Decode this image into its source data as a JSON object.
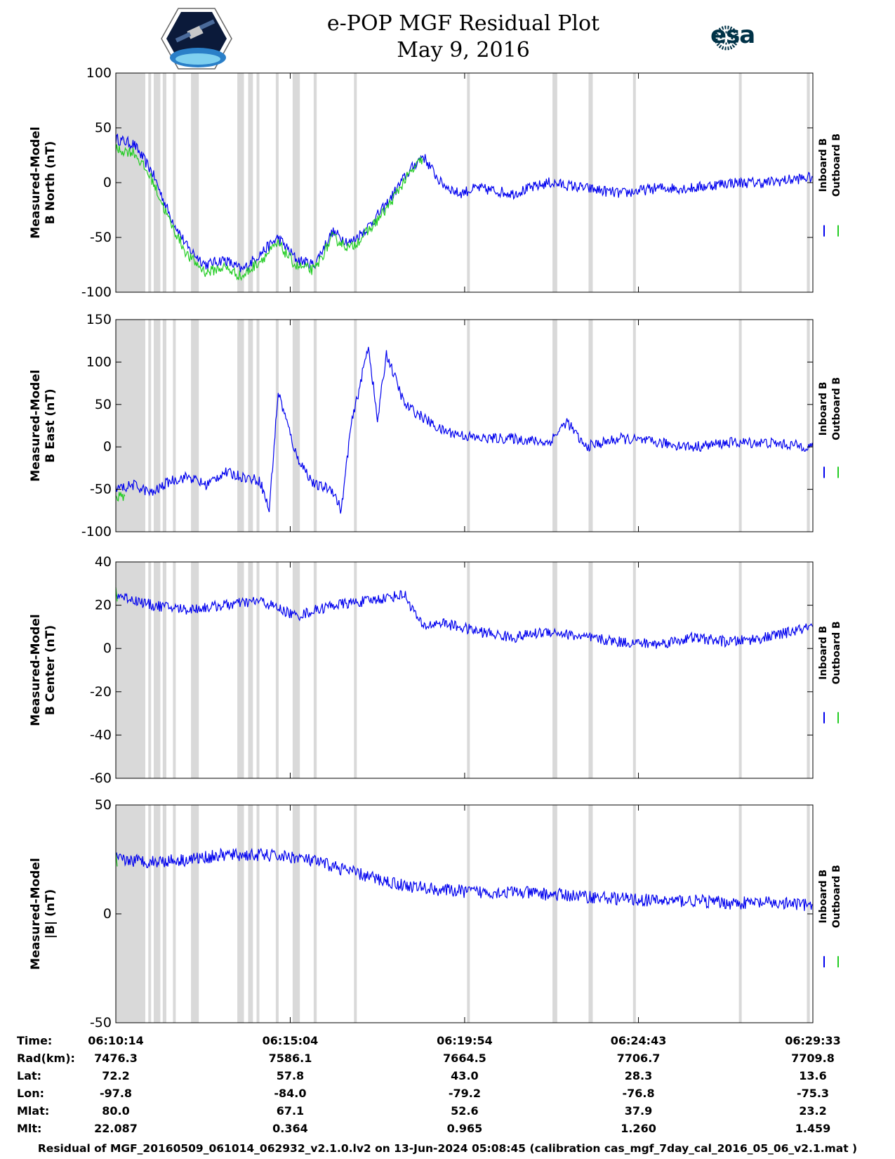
{
  "header": {
    "title_line1": "e-POP MGF Residual Plot",
    "title_line2": "May 9, 2016",
    "logo_left": "cassiope-mission-logo",
    "logo_right": "esa-logo",
    "logo_right_text": "esa"
  },
  "footer": "Residual of MGF_20160509_061014_062932_v2.1.0.lv2 on 13-Jun-2024 05:08:45 (calibration cas_mgf_7day_cal_2016_05_06_v2.1.mat )",
  "colors": {
    "inboard": "#0000ee",
    "outboard": "#22cc22",
    "gap": "#d9d9d9"
  },
  "ephemeris": {
    "row_labels": [
      "Time:",
      "Rad(km):",
      "Lat:",
      "Lon:",
      "Mlat:",
      "Mlt:"
    ],
    "columns": [
      [
        "06:10:14",
        "7476.3",
        "72.2",
        "-97.8",
        "80.0",
        "22.087"
      ],
      [
        "06:15:04",
        "7586.1",
        "57.8",
        "-84.0",
        "67.1",
        "0.364"
      ],
      [
        "06:19:54",
        "7664.5",
        "43.0",
        "-79.2",
        "52.6",
        "0.965"
      ],
      [
        "06:24:43",
        "7706.7",
        "28.3",
        "-76.8",
        "37.9",
        "1.260"
      ],
      [
        "06:29:33",
        "7709.8",
        "13.6",
        "-75.3",
        "23.2",
        "1.459"
      ]
    ]
  },
  "chart_data": [
    {
      "type": "line",
      "ylabel": [
        "Measured-Model",
        "B North (nT)"
      ],
      "ylim": [
        -100,
        100
      ],
      "yticks": [
        -100,
        -50,
        0,
        50,
        100
      ],
      "xlim": [
        "06:10:14",
        "06:29:33"
      ],
      "legend": [
        "Inboard B",
        "Outboard B"
      ],
      "legend_position": "right",
      "series": [
        {
          "name": "Inboard B",
          "x": [
            "06:10:14",
            "06:10:44",
            "06:11:14",
            "06:11:44",
            "06:12:14",
            "06:12:44",
            "06:13:14",
            "06:13:44",
            "06:14:14",
            "06:14:44",
            "06:15:14",
            "06:15:44",
            "06:16:14",
            "06:16:44",
            "06:17:14",
            "06:17:44",
            "06:18:14",
            "06:18:44",
            "06:19:14",
            "06:19:44",
            "06:20:14",
            "06:21:14",
            "06:22:14",
            "06:23:14",
            "06:24:14",
            "06:25:14",
            "06:26:14",
            "06:27:14",
            "06:28:14",
            "06:29:33"
          ],
          "y": [
            40,
            35,
            10,
            -30,
            -60,
            -75,
            -70,
            -80,
            -65,
            -50,
            -70,
            -75,
            -45,
            -55,
            -40,
            -20,
            5,
            25,
            0,
            -10,
            -5,
            -10,
            0,
            -5,
            -10,
            -5,
            -5,
            0,
            0,
            5
          ]
        },
        {
          "name": "Outboard B",
          "x": [
            "06:10:14",
            "06:10:44",
            "06:11:14",
            "06:11:44",
            "06:12:14",
            "06:12:44",
            "06:13:14",
            "06:13:44",
            "06:14:14",
            "06:14:44",
            "06:15:14",
            "06:15:44",
            "06:16:14",
            "06:16:44",
            "06:17:14",
            "06:17:44",
            "06:18:14",
            "06:18:44"
          ],
          "y": [
            30,
            28,
            3,
            -36,
            -67,
            -82,
            -77,
            -86,
            -71,
            -56,
            -76,
            -80,
            -50,
            -60,
            -44,
            -24,
            2,
            22
          ]
        }
      ]
    },
    {
      "type": "line",
      "ylabel": [
        "Measured-Model",
        "B East (nT)"
      ],
      "ylim": [
        -100,
        150
      ],
      "yticks": [
        -100,
        -50,
        0,
        50,
        100,
        150
      ],
      "xlim": [
        "06:10:14",
        "06:29:33"
      ],
      "legend": [
        "Inboard B",
        "Outboard B"
      ],
      "legend_position": "right",
      "series": [
        {
          "name": "Inboard B",
          "x": [
            "06:10:14",
            "06:10:44",
            "06:11:14",
            "06:11:44",
            "06:12:14",
            "06:12:44",
            "06:13:14",
            "06:13:44",
            "06:14:14",
            "06:14:29",
            "06:14:44",
            "06:15:14",
            "06:15:44",
            "06:16:14",
            "06:16:29",
            "06:16:44",
            "06:17:14",
            "06:17:29",
            "06:17:44",
            "06:18:14",
            "06:18:44",
            "06:19:14",
            "06:19:44",
            "06:20:14",
            "06:21:14",
            "06:22:14",
            "06:22:44",
            "06:23:14",
            "06:24:14",
            "06:25:14",
            "06:26:14",
            "06:27:14",
            "06:28:14",
            "06:29:33"
          ],
          "y": [
            -50,
            -45,
            -55,
            -40,
            -35,
            -45,
            -30,
            -35,
            -40,
            -75,
            65,
            -10,
            -45,
            -50,
            -75,
            20,
            120,
            30,
            110,
            50,
            35,
            20,
            15,
            10,
            10,
            5,
            30,
            0,
            10,
            5,
            0,
            5,
            5,
            0
          ]
        },
        {
          "name": "Outboard B",
          "x": [
            "06:10:14",
            "06:10:29"
          ],
          "y": [
            -60,
            -58
          ]
        }
      ]
    },
    {
      "type": "line",
      "ylabel": [
        "Measured-Model",
        "B Center (nT)"
      ],
      "ylim": [
        -60,
        40
      ],
      "yticks": [
        -60,
        -40,
        -20,
        0,
        20,
        40
      ],
      "xlim": [
        "06:10:14",
        "06:29:33"
      ],
      "legend": [
        "Inboard B",
        "Outboard B"
      ],
      "legend_position": "right",
      "series": [
        {
          "name": "Inboard B",
          "x": [
            "06:10:14",
            "06:11:14",
            "06:12:14",
            "06:13:14",
            "06:14:14",
            "06:15:14",
            "06:16:14",
            "06:17:14",
            "06:18:14",
            "06:18:44",
            "06:19:14",
            "06:20:14",
            "06:21:14",
            "06:22:14",
            "06:23:14",
            "06:24:14",
            "06:25:14",
            "06:26:14",
            "06:27:14",
            "06:28:14",
            "06:29:33"
          ],
          "y": [
            25,
            20,
            18,
            20,
            22,
            15,
            20,
            22,
            25,
            10,
            12,
            8,
            5,
            8,
            5,
            3,
            2,
            5,
            3,
            5,
            10
          ]
        },
        {
          "name": "Outboard B",
          "x": [
            "06:10:14"
          ],
          "y": [
            25
          ]
        }
      ]
    },
    {
      "type": "line",
      "ylabel": [
        "Measured-Model",
        "|B| (nT)"
      ],
      "ylim": [
        -50,
        50
      ],
      "yticks": [
        -50,
        0,
        50
      ],
      "xlim": [
        "06:10:14",
        "06:29:33"
      ],
      "legend": [
        "Inboard B",
        "Outboard B"
      ],
      "legend_position": "right",
      "series": [
        {
          "name": "Inboard B",
          "x": [
            "06:10:14",
            "06:11:14",
            "06:12:14",
            "06:13:14",
            "06:14:14",
            "06:15:14",
            "06:16:14",
            "06:17:14",
            "06:18:14",
            "06:19:14",
            "06:20:14",
            "06:21:14",
            "06:22:14",
            "06:23:14",
            "06:24:14",
            "06:25:14",
            "06:26:14",
            "06:27:14",
            "06:28:14",
            "06:29:33"
          ],
          "y": [
            25,
            24,
            25,
            27,
            27,
            26,
            22,
            17,
            13,
            11,
            10,
            10,
            9,
            8,
            7,
            6,
            6,
            5,
            5,
            4
          ]
        },
        {
          "name": "Outboard B",
          "x": [
            "06:10:14"
          ],
          "y": [
            25
          ]
        }
      ]
    }
  ],
  "data_gaps": [
    [
      "06:10:14",
      "06:11:03"
    ],
    [
      "06:11:08",
      "06:11:12"
    ],
    [
      "06:11:17",
      "06:11:28"
    ],
    [
      "06:11:32",
      "06:11:38"
    ],
    [
      "06:11:49",
      "06:11:53"
    ],
    [
      "06:12:19",
      "06:12:32"
    ],
    [
      "06:13:36",
      "06:13:47"
    ],
    [
      "06:13:54",
      "06:14:02"
    ],
    [
      "06:14:08",
      "06:14:12"
    ],
    [
      "06:14:40",
      "06:14:44"
    ],
    [
      "06:15:08",
      "06:15:20"
    ],
    [
      "06:15:43",
      "06:15:48"
    ],
    [
      "06:16:50",
      "06:16:54"
    ],
    [
      "06:19:58",
      "06:20:02"
    ],
    [
      "06:22:20",
      "06:22:28"
    ],
    [
      "06:23:20",
      "06:23:27"
    ],
    [
      "06:24:34",
      "06:24:38"
    ],
    [
      "06:27:30",
      "06:27:34"
    ],
    [
      "06:29:23",
      "06:29:28"
    ]
  ]
}
